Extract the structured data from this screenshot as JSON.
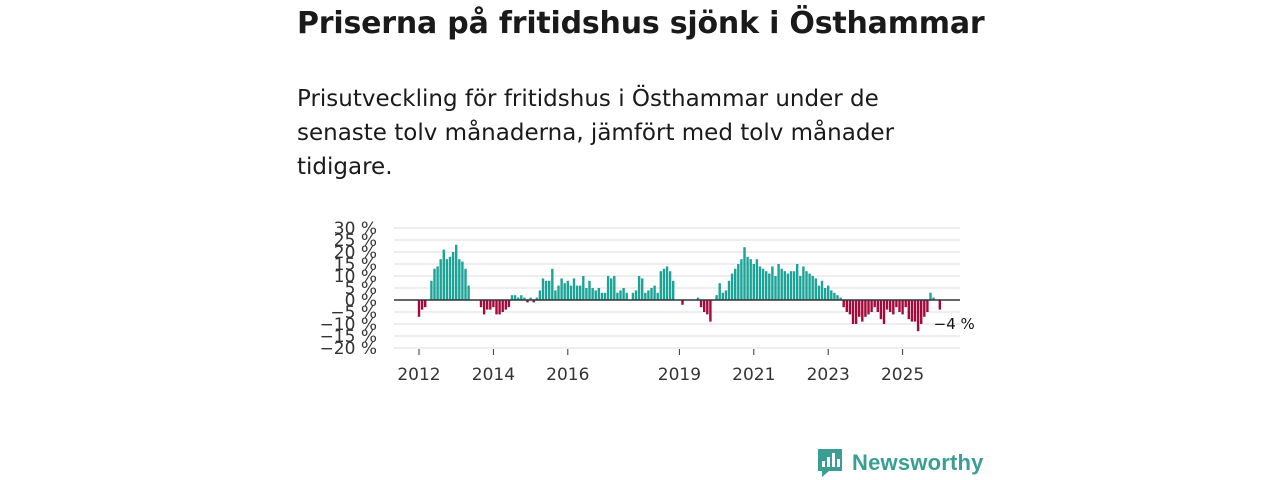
{
  "title": "Priserna på fritidshus sjönk i Östhammar",
  "subtitle": "Prisutveckling för fritidshus i Östhammar under de senaste tolv månaderna, jämfört med tolv månader tidigare.",
  "brand": {
    "name": "Newsworthy",
    "icon": "newsworthy-logo-icon",
    "color": "#3a9e95"
  },
  "colors": {
    "positive": "#1aa396",
    "negative": "#a3093b",
    "grid": "#dddddd",
    "zero": "#333333"
  },
  "chart_data": {
    "type": "bar",
    "title": "Priserna på fritidshus sjönk i Östhammar",
    "xlabel": "",
    "ylabel": "",
    "ylim": [
      -20,
      30
    ],
    "y_ticks": [
      30,
      25,
      20,
      15,
      10,
      5,
      0,
      -5,
      -10,
      -15,
      -20
    ],
    "y_tick_labels": [
      "30 %",
      "25 %",
      "20 %",
      "15 %",
      "10 %",
      "5 %",
      "0 %",
      "−5 %",
      "−10 %",
      "−15 %",
      "−20 %"
    ],
    "x_ticks": [
      {
        "label": "2012",
        "index": 0
      },
      {
        "label": "2014",
        "index": 24
      },
      {
        "label": "2016",
        "index": 48
      },
      {
        "label": "2019",
        "index": 84
      },
      {
        "label": "2021",
        "index": 108
      },
      {
        "label": "2023",
        "index": 132
      },
      {
        "label": "2025",
        "index": 156
      }
    ],
    "start": "2012-01",
    "series": [
      {
        "name": "Prisutveckling",
        "values": [
          -7,
          -4,
          -3,
          null,
          8,
          13,
          14,
          17,
          21,
          17,
          18,
          20,
          23,
          17,
          16,
          13,
          6,
          null,
          null,
          null,
          -3,
          -6,
          -4,
          -4,
          -3,
          -6,
          -6,
          -5,
          -4,
          -3,
          2,
          2,
          1,
          2,
          1,
          -1,
          1,
          -1,
          1,
          4,
          9,
          8,
          8,
          13,
          4,
          6,
          9,
          7,
          8,
          6,
          9,
          6,
          6,
          10,
          5,
          8,
          5,
          4,
          5,
          3,
          3,
          10,
          9,
          10,
          3,
          4,
          5,
          3,
          null,
          3,
          4,
          10,
          9,
          3,
          4,
          5,
          6,
          3,
          12,
          13,
          14,
          12,
          8,
          null,
          null,
          -2,
          null,
          null,
          null,
          null,
          1,
          -3,
          -5,
          -6,
          -9,
          null,
          2,
          7,
          3,
          4,
          8,
          11,
          13,
          15,
          17,
          22,
          18,
          17,
          15,
          17,
          14,
          13,
          12,
          11,
          14,
          10,
          15,
          13,
          12,
          11,
          12,
          12,
          15,
          10,
          14,
          12,
          11,
          10,
          9,
          6,
          8,
          5,
          6,
          4,
          3,
          2,
          1,
          -3,
          -5,
          -6,
          -10,
          -10,
          -7,
          -9,
          -7,
          -6,
          -5,
          -3,
          -5,
          -8,
          -10,
          -4,
          -5,
          -6,
          -3,
          -5,
          -6,
          -3,
          -8,
          -9,
          -9,
          -13,
          -10,
          -7,
          -5,
          3,
          1,
          null,
          -4
        ]
      }
    ],
    "annotation": {
      "label": "−4 %",
      "index": 172
    }
  }
}
